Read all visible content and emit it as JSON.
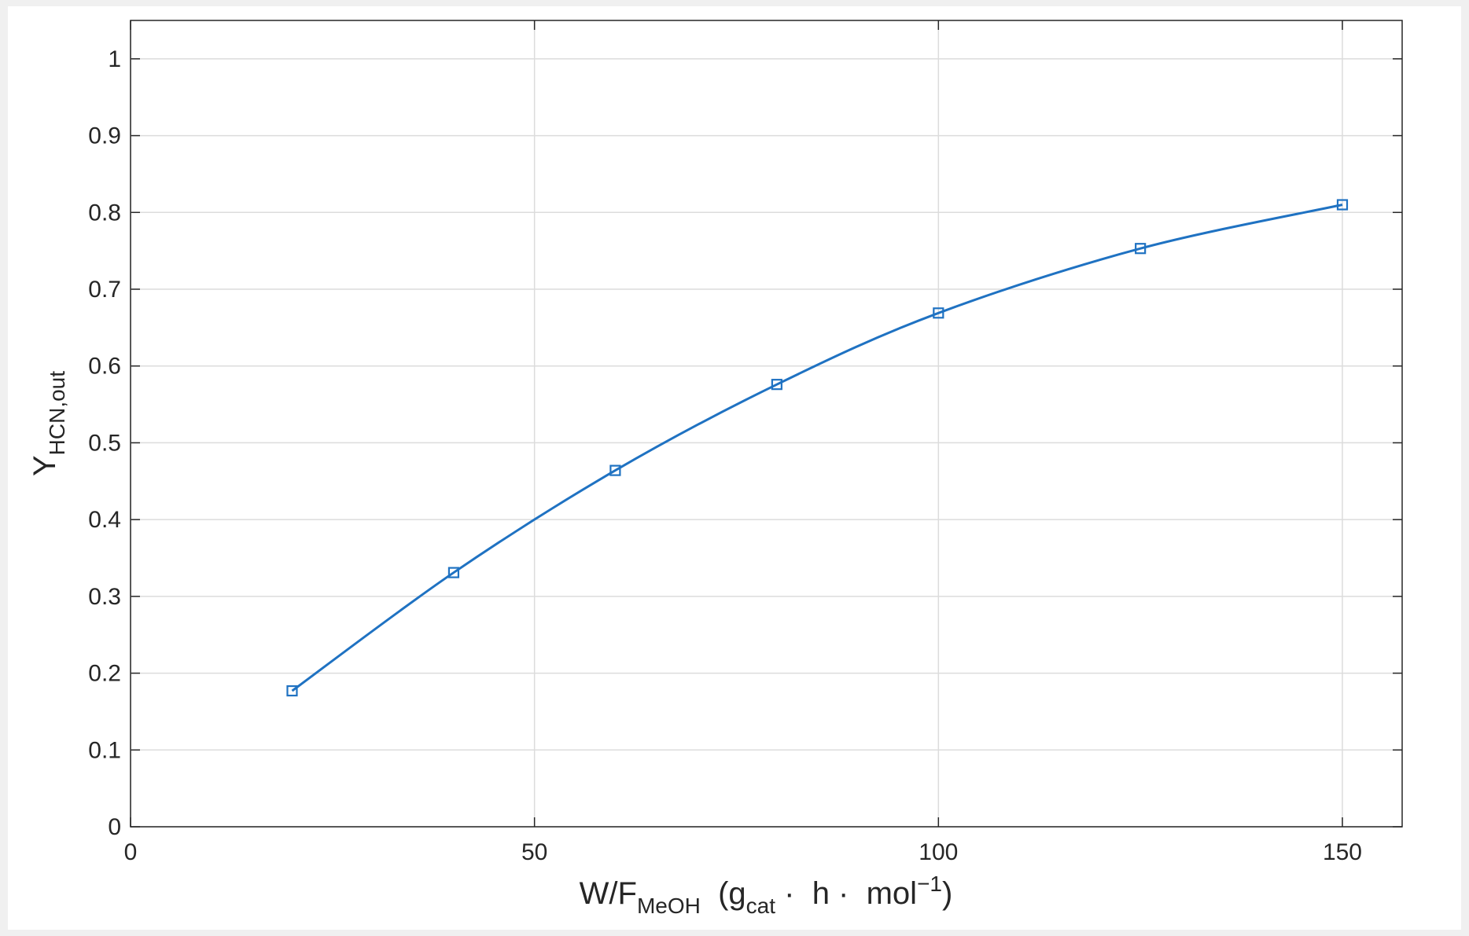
{
  "chart_data": {
    "type": "line",
    "ylabel": [
      {
        "text": "Y",
        "shift": "base"
      },
      {
        "text": "HCN,out",
        "shift": "sub"
      }
    ],
    "xlabel": [
      {
        "text": "W/F",
        "shift": "base"
      },
      {
        "text": "MeOH",
        "shift": "sub"
      },
      {
        "text": "  (g",
        "shift": "base"
      },
      {
        "text": "cat",
        "shift": "sub"
      },
      {
        "text": " ·  h ·  mol",
        "shift": "base"
      },
      {
        "text": "−1",
        "shift": "sup"
      },
      {
        "text": ")",
        "shift": "base"
      }
    ],
    "x": [
      20,
      40,
      60,
      80,
      100,
      125,
      150
    ],
    "series": [
      {
        "color": "#1f72c2",
        "values": [
          0.177,
          0.331,
          0.464,
          0.576,
          0.669,
          0.753,
          0.81
        ]
      }
    ],
    "xlim": [
      0,
      157.4
    ],
    "xticks": [
      0,
      50,
      100,
      150
    ],
    "ylim": [
      0,
      1.05
    ],
    "yticks": [
      0,
      0.1,
      0.2,
      0.3,
      0.4,
      0.5,
      0.6,
      0.7,
      0.8,
      0.9,
      1
    ],
    "grid": true,
    "marker": "square"
  }
}
